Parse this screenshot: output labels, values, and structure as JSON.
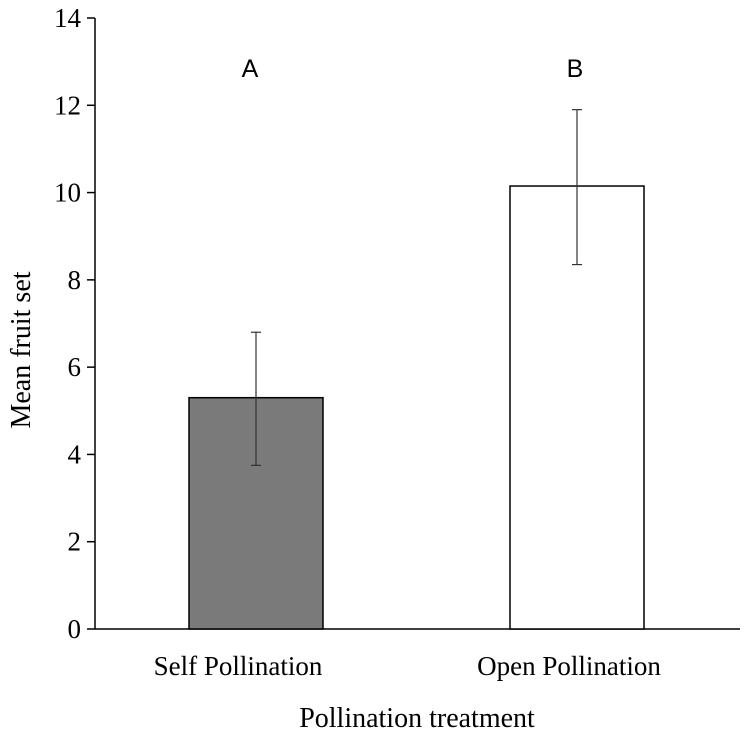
{
  "chart_data": {
    "type": "bar",
    "title": "",
    "xlabel": "Pollination treatment",
    "ylabel": "Mean fruit set",
    "ylim": [
      0,
      14
    ],
    "yticks": [
      0,
      2,
      4,
      6,
      8,
      10,
      12,
      14
    ],
    "grid": false,
    "categories": [
      "Self Pollination",
      "Open Pollination"
    ],
    "values": [
      5.3,
      10.15
    ],
    "error_low": [
      3.75,
      8.35
    ],
    "error_high": [
      6.8,
      11.9
    ],
    "significance_letters": [
      "A",
      "B"
    ],
    "bar_colors": [
      "#7a7a7a",
      "#ffffff"
    ],
    "bar_stroke": "#000000"
  }
}
